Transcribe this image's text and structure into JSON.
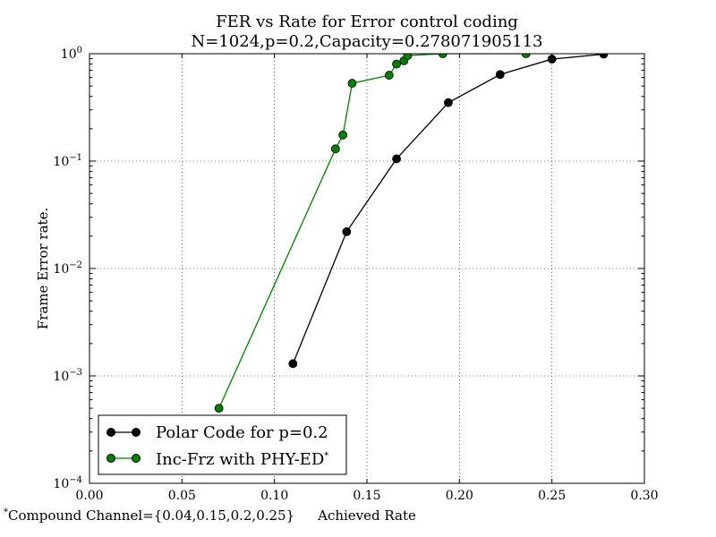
{
  "chart_data": {
    "type": "line",
    "title": "FER vs Rate for Error control coding",
    "subtitle": "N=1024,p=0.2,Capacity=0.278071905113",
    "xlabel": "Achieved Rate",
    "ylabel": "Frame Error rate.",
    "xlim": [
      0.0,
      0.3
    ],
    "ylim": [
      0.0001,
      1
    ],
    "yscale": "log",
    "grid": true,
    "x_ticks": [
      "0.00",
      "0.05",
      "0.10",
      "0.15",
      "0.20",
      "0.25",
      "0.30"
    ],
    "y_ticks": [
      {
        "base": "10",
        "exp": "0",
        "value": 1
      },
      {
        "base": "10",
        "exp": "−1",
        "value": 0.1
      },
      {
        "base": "10",
        "exp": "−2",
        "value": 0.01
      },
      {
        "base": "10",
        "exp": "−3",
        "value": 0.001
      },
      {
        "base": "10",
        "exp": "−4",
        "value": 0.0001
      }
    ],
    "legend_position": "lower-left",
    "series": [
      {
        "name": "Polar Code for p=0.2",
        "color": "#000000",
        "x": [
          0.11,
          0.139,
          0.166,
          0.194,
          0.222,
          0.25,
          0.278
        ],
        "y": [
          0.0013,
          0.022,
          0.105,
          0.35,
          0.64,
          0.89,
          0.99
        ]
      },
      {
        "name": "Inc-Frz with PHY-ED",
        "name_suffix": "*",
        "color": "#008000",
        "x": [
          0.07,
          0.133,
          0.137,
          0.142,
          0.162,
          0.166,
          0.17,
          0.172,
          0.191,
          0.236
        ],
        "y": [
          0.0005,
          0.13,
          0.175,
          0.53,
          0.63,
          0.8,
          0.86,
          0.96,
          1.0,
          1.0
        ]
      }
    ],
    "footnote": {
      "mark": "*",
      "text": "Compound Channel={0.04,0.15,0.2,0.25}"
    }
  }
}
